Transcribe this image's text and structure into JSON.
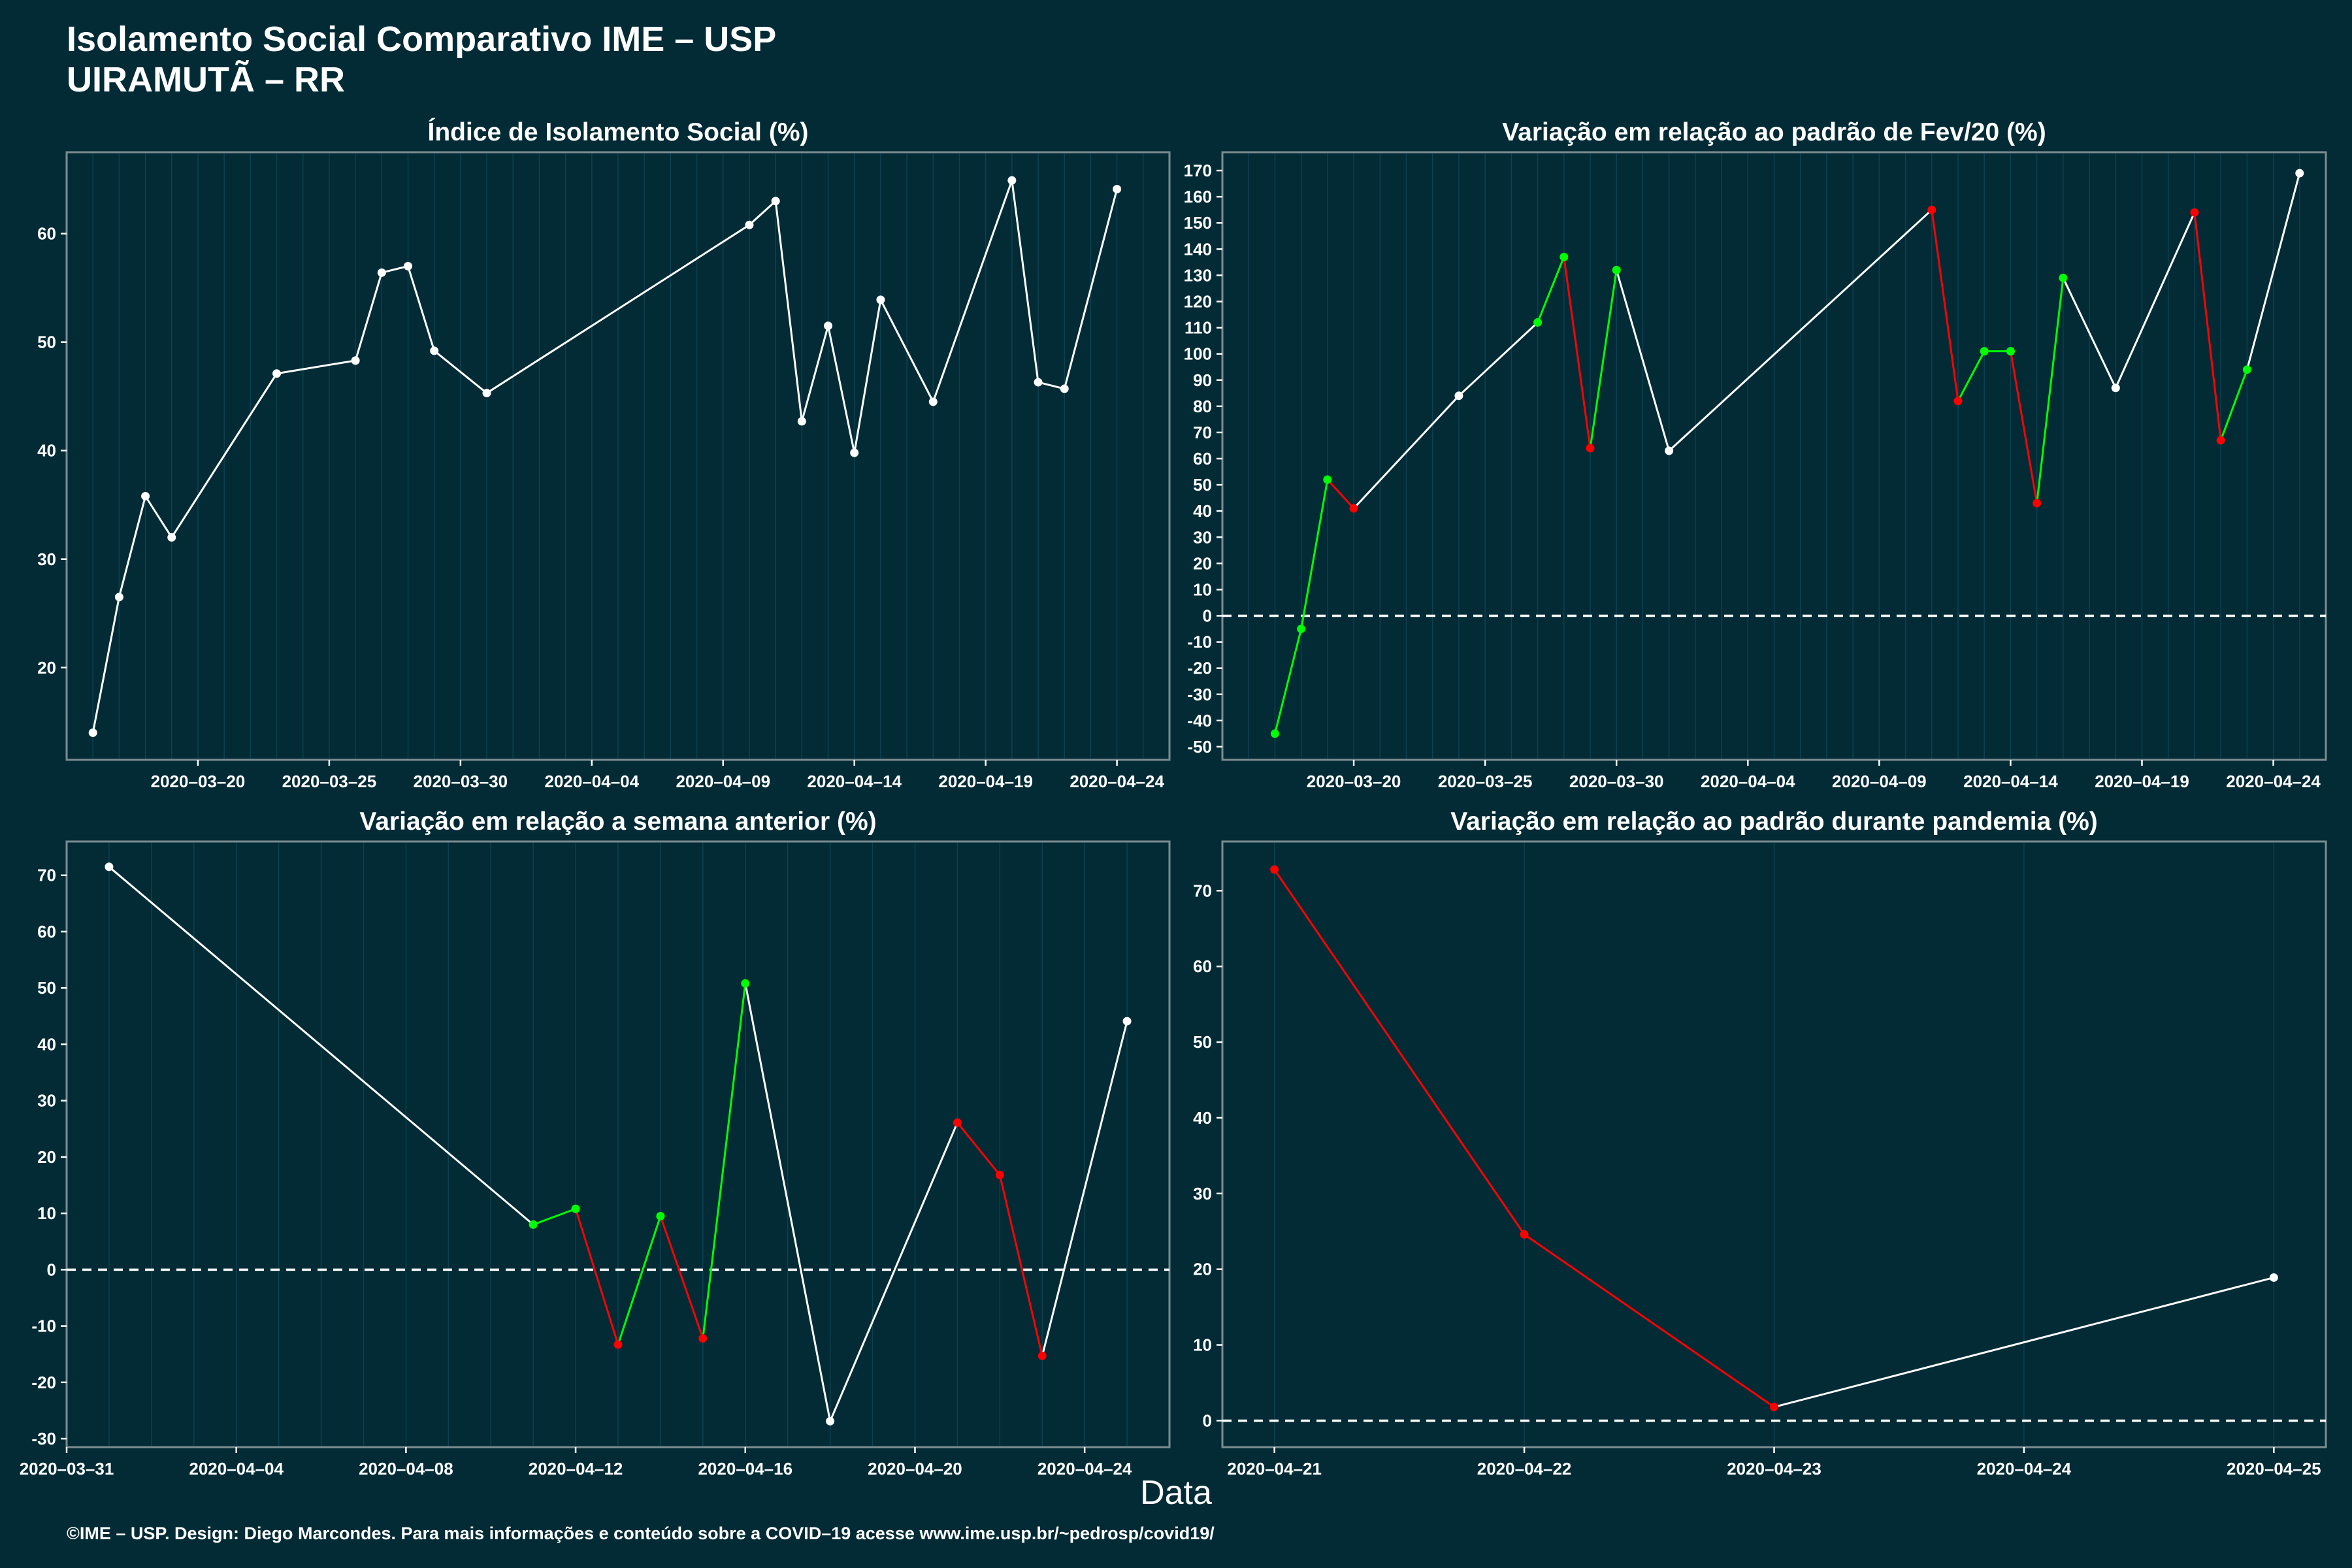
{
  "header": {
    "title": "Isolamento Social Comparativo IME – USP",
    "subtitle": "UIRAMUTÃ – RR"
  },
  "xlabel": "Data",
  "footer": "©IME – USP. Design: Diego Marcondes. Para mais informações e conteúdo sobre a COVID–19 acesse www.ime.usp.br/~pedrosp/covid19/",
  "colors": {
    "background": "#022b36",
    "line": "#ffffff",
    "increase": "#00ff00",
    "decrease": "#ff0000",
    "grid": "#0d4050"
  },
  "chart_data": [
    {
      "type": "line",
      "title": "Índice de Isolamento Social (%)",
      "x_tick_labels": [
        "2020–03–20",
        "2020–03–25",
        "2020–03–30",
        "2020–04–04",
        "2020–04–09",
        "2020–04–14",
        "2020–04–19",
        "2020–04–24"
      ],
      "xlim": [
        "2020-03-15",
        "2020-04-26"
      ],
      "ylim": [
        11.5,
        67.5
      ],
      "y_ticks": [
        20,
        30,
        40,
        50,
        60
      ],
      "zero_line": false,
      "color_segments": false,
      "points": [
        {
          "x": "2020-03-16",
          "y": 14.0
        },
        {
          "x": "2020-03-17",
          "y": 26.5
        },
        {
          "x": "2020-03-18",
          "y": 35.8
        },
        {
          "x": "2020-03-19",
          "y": 32.0
        },
        {
          "x": "2020-03-23",
          "y": 47.1
        },
        {
          "x": "2020-03-26",
          "y": 48.3
        },
        {
          "x": "2020-03-27",
          "y": 56.4
        },
        {
          "x": "2020-03-28",
          "y": 57.0
        },
        {
          "x": "2020-03-29",
          "y": 49.2
        },
        {
          "x": "2020-03-31",
          "y": 45.3
        },
        {
          "x": "2020-04-10",
          "y": 60.8
        },
        {
          "x": "2020-04-11",
          "y": 63.0
        },
        {
          "x": "2020-04-12",
          "y": 42.7
        },
        {
          "x": "2020-04-13",
          "y": 51.5
        },
        {
          "x": "2020-04-14",
          "y": 39.8
        },
        {
          "x": "2020-04-15",
          "y": 53.9
        },
        {
          "x": "2020-04-17",
          "y": 44.5
        },
        {
          "x": "2020-04-20",
          "y": 64.9
        },
        {
          "x": "2020-04-21",
          "y": 46.3
        },
        {
          "x": "2020-04-22",
          "y": 45.7
        },
        {
          "x": "2020-04-24",
          "y": 64.1
        }
      ]
    },
    {
      "type": "line",
      "title": "Variação em relação ao padrão de Fev/20 (%)",
      "x_tick_labels": [
        "2020–03–20",
        "2020–03–25",
        "2020–03–30",
        "2020–04–04",
        "2020–04–09",
        "2020–04–14",
        "2020–04–19",
        "2020–04–24"
      ],
      "xlim": [
        "2020-03-15",
        "2020-04-26"
      ],
      "ylim": [
        -55,
        177
      ],
      "y_ticks": [
        -50,
        -40,
        -30,
        -20,
        -10,
        0,
        10,
        20,
        30,
        40,
        50,
        60,
        70,
        80,
        90,
        100,
        110,
        120,
        130,
        140,
        150,
        160,
        170
      ],
      "zero_line": true,
      "color_segments": true,
      "points": [
        {
          "x": "2020-03-17",
          "y": -45
        },
        {
          "x": "2020-03-18",
          "y": -5
        },
        {
          "x": "2020-03-19",
          "y": 52
        },
        {
          "x": "2020-03-20",
          "y": 41
        },
        {
          "x": "2020-03-24",
          "y": 84
        },
        {
          "x": "2020-03-27",
          "y": 112
        },
        {
          "x": "2020-03-28",
          "y": 137
        },
        {
          "x": "2020-03-29",
          "y": 64
        },
        {
          "x": "2020-03-30",
          "y": 132
        },
        {
          "x": "2020-04-01",
          "y": 63
        },
        {
          "x": "2020-04-11",
          "y": 155
        },
        {
          "x": "2020-04-12",
          "y": 82
        },
        {
          "x": "2020-04-13",
          "y": 101
        },
        {
          "x": "2020-04-14",
          "y": 101
        },
        {
          "x": "2020-04-15",
          "y": 43
        },
        {
          "x": "2020-04-16",
          "y": 129
        },
        {
          "x": "2020-04-18",
          "y": 87
        },
        {
          "x": "2020-04-21",
          "y": 154
        },
        {
          "x": "2020-04-22",
          "y": 67
        },
        {
          "x": "2020-04-23",
          "y": 94
        },
        {
          "x": "2020-04-25",
          "y": 169
        }
      ]
    },
    {
      "type": "line",
      "title": "Variação em relação a semana anterior (%)",
      "x_tick_labels": [
        "2020–03–31",
        "2020–04–04",
        "2020–04–08",
        "2020–04–12",
        "2020–04–16",
        "2020–04–20",
        "2020–04–24"
      ],
      "xlim": [
        "2020-03-31",
        "2020-04-26"
      ],
      "ylim": [
        -31.5,
        76
      ],
      "y_ticks": [
        -30,
        -20,
        -10,
        0,
        10,
        20,
        30,
        40,
        50,
        60,
        70
      ],
      "zero_line": true,
      "color_segments": true,
      "points": [
        {
          "x": "2020-04-01",
          "y": 71.5
        },
        {
          "x": "2020-04-11",
          "y": 8.0
        },
        {
          "x": "2020-04-12",
          "y": 10.8
        },
        {
          "x": "2020-04-13",
          "y": -13.3
        },
        {
          "x": "2020-04-14",
          "y": 9.5
        },
        {
          "x": "2020-04-15",
          "y": -12.2
        },
        {
          "x": "2020-04-16",
          "y": 50.8
        },
        {
          "x": "2020-04-18",
          "y": -26.9
        },
        {
          "x": "2020-04-21",
          "y": 26.1
        },
        {
          "x": "2020-04-22",
          "y": 16.8
        },
        {
          "x": "2020-04-23",
          "y": -15.3
        },
        {
          "x": "2020-04-25",
          "y": 44.1
        }
      ]
    },
    {
      "type": "line",
      "title": "Variação em relação ao padrão durante pandemia (%)",
      "x_tick_labels": [
        "2020–04–21",
        "2020–04–22",
        "2020–04–23",
        "2020–04–24",
        "2020–04–25"
      ],
      "xlim": [
        "2020-04-20T19:00",
        "2020-04-25T05:00"
      ],
      "ylim": [
        -3.5,
        76.5
      ],
      "y_ticks": [
        0,
        10,
        20,
        30,
        40,
        50,
        60,
        70
      ],
      "zero_line": true,
      "color_segments": true,
      "points": [
        {
          "x": "2020-04-21",
          "y": 72.8
        },
        {
          "x": "2020-04-22",
          "y": 24.6
        },
        {
          "x": "2020-04-23",
          "y": 1.8
        },
        {
          "x": "2020-04-25",
          "y": 18.9
        }
      ]
    }
  ]
}
